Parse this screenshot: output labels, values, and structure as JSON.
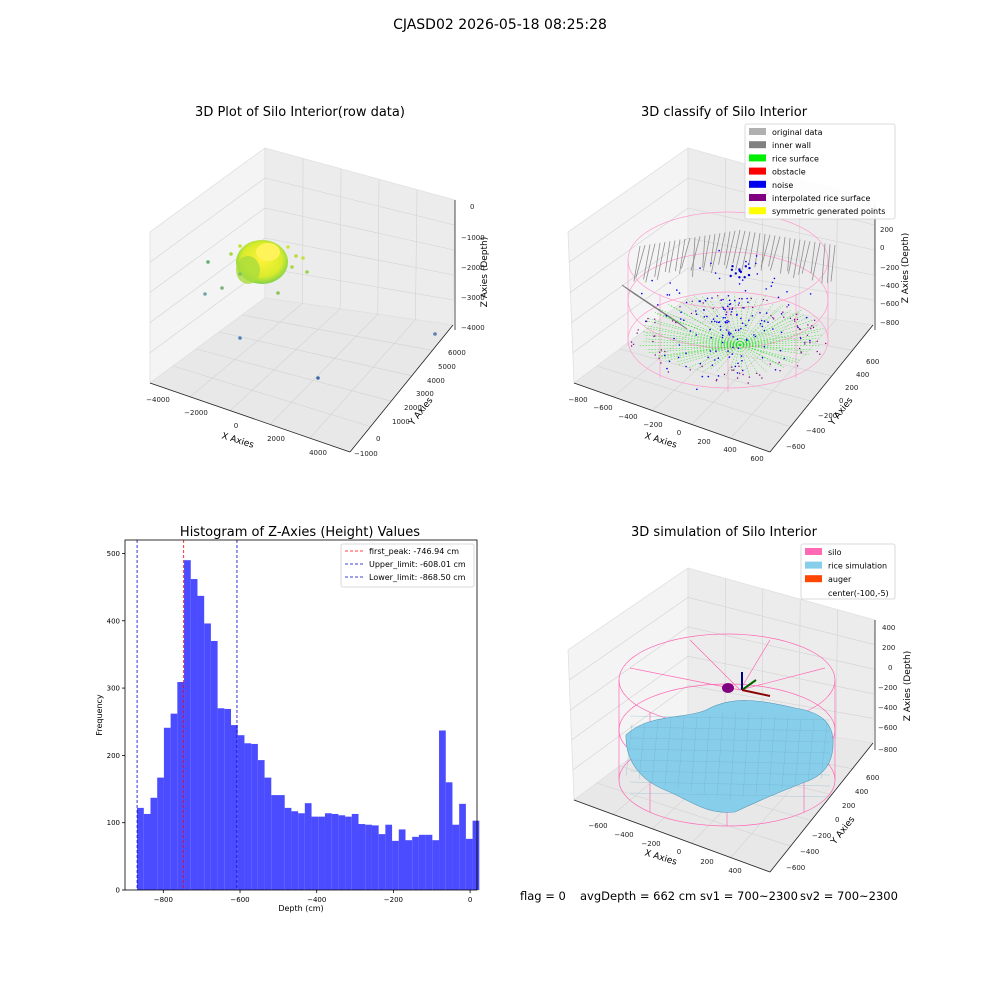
{
  "figure_title": "CJASD02 2026-05-18 08:25:28",
  "footer": {
    "flag": "flag = 0",
    "avg_depth": "avgDepth = 662 cm",
    "sv1": "sv1 = 700~2300",
    "sv2": "sv2 = 700~2300"
  },
  "chart_data": [
    {
      "type": "scatter",
      "title": "3D Plot of Silo Interior(row data)",
      "xlabel": "X Axies",
      "ylabel": "Y Axies",
      "zlabel": "Z Axies (Depth)",
      "x_ticks": [
        "−4000",
        "−2000",
        "0",
        "2000",
        "4000"
      ],
      "y_ticks": [
        "−1000",
        "0",
        "1000",
        "2000",
        "3000",
        "4000",
        "5000",
        "6000"
      ],
      "z_ticks": [
        "0",
        "−1000",
        "−2000",
        "−3000",
        "−4000"
      ],
      "colormap": "viridis",
      "note": "dense yellow-green point cluster near center with scattered outliers"
    },
    {
      "type": "scatter",
      "title": "3D classify of Silo Interior",
      "xlabel": "X Axies",
      "ylabel": "Y Axies",
      "zlabel": "Z Axies (Depth)",
      "x_ticks": [
        "−800",
        "−600",
        "−400",
        "−200",
        "0",
        "200",
        "400",
        "600"
      ],
      "y_ticks": [
        "−600",
        "−400",
        "−200",
        "0",
        "200",
        "400",
        "600"
      ],
      "z_ticks": [
        "200",
        "0",
        "−200",
        "−400",
        "−600",
        "−800"
      ],
      "legend": [
        {
          "label": "original data",
          "color": "#b0b0b0"
        },
        {
          "label": "inner wall",
          "color": "#808080"
        },
        {
          "label": "rice surface",
          "color": "#00ee00"
        },
        {
          "label": "obstacle",
          "color": "#ff0000"
        },
        {
          "label": "noise",
          "color": "#0000ee"
        },
        {
          "label": "interpolated rice surface",
          "color": "#800080"
        },
        {
          "label": "symmetric generated points",
          "color": "#ffff00"
        }
      ],
      "legend_position": "top-right"
    },
    {
      "type": "bar",
      "title": "Histogram of Z-Axies (Height) Values",
      "xlabel": "Depth (cm)",
      "ylabel": "Frequency",
      "bin_start": -868.5,
      "bin_width": 17.5,
      "values": [
        122,
        113,
        137,
        167,
        241,
        262,
        309,
        490,
        462,
        437,
        396,
        370,
        270,
        269,
        245,
        230,
        218,
        217,
        193,
        167,
        141,
        141,
        122,
        117,
        114,
        129,
        109,
        109,
        114,
        113,
        111,
        109,
        113,
        98,
        97,
        96,
        83,
        97,
        73,
        90,
        74,
        79,
        82,
        82,
        74,
        237,
        160,
        97,
        128,
        76,
        103
      ],
      "xlim": [
        -900,
        18
      ],
      "ylim": [
        0,
        520
      ],
      "x_ticks": [
        {
          "v": -800,
          "t": "−800"
        },
        {
          "v": -600,
          "t": "−600"
        },
        {
          "v": -400,
          "t": "−400"
        },
        {
          "v": -200,
          "t": "−200"
        },
        {
          "v": 0,
          "t": "0"
        }
      ],
      "y_ticks": [
        {
          "v": 0,
          "t": "0"
        },
        {
          "v": 100,
          "t": "100"
        },
        {
          "v": 200,
          "t": "200"
        },
        {
          "v": 300,
          "t": "300"
        },
        {
          "v": 400,
          "t": "400"
        },
        {
          "v": 500,
          "t": "500"
        }
      ],
      "bar_color": "#4b4bff",
      "reference_lines": [
        {
          "label": "first_peak: -746.94 cm",
          "x": -746.94,
          "color": "#ff0000"
        },
        {
          "label": "Upper_limit: -608.01 cm",
          "x": -608.01,
          "color": "#0000cc"
        },
        {
          "label": "Lower_limit: -868.50 cm",
          "x": -868.5,
          "color": "#0000cc"
        }
      ],
      "legend_position": "top-right",
      "grid": false
    },
    {
      "type": "area",
      "title": "3D simulation of Silo Interior",
      "xlabel": "X Axies",
      "ylabel": "Y Axies",
      "zlabel": "Z Axies (Depth)",
      "x_ticks": [
        "−600",
        "−400",
        "−200",
        "0",
        "200",
        "400"
      ],
      "y_ticks": [
        "−600",
        "−400",
        "−200",
        "0",
        "200",
        "400",
        "600"
      ],
      "z_ticks": [
        "400",
        "200",
        "0",
        "−200",
        "−400",
        "−600",
        "−800"
      ],
      "legend": [
        {
          "label": "silo",
          "color": "#ff69b4"
        },
        {
          "label": "rice simulation",
          "color": "#87ceeb"
        },
        {
          "label": "auger",
          "color": "#ff4500"
        },
        {
          "label": "center(-100,-5)",
          "color": null
        }
      ],
      "legend_position": "top-right"
    }
  ]
}
